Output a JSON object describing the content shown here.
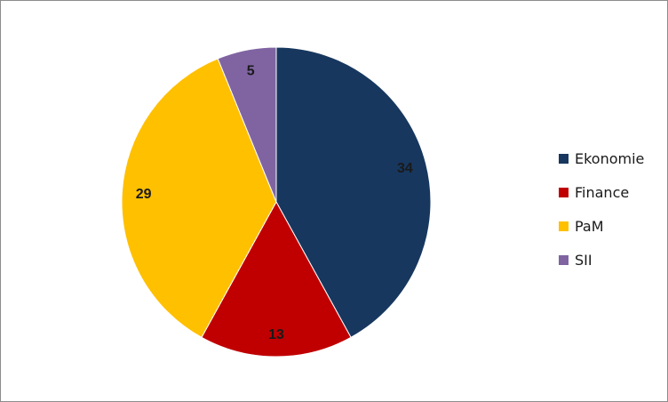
{
  "chart_data": {
    "type": "pie",
    "categories": [
      "Ekonomie",
      "Finance",
      "PaM",
      "SII"
    ],
    "values": [
      34,
      13,
      29,
      5
    ],
    "colors": [
      "#17375E",
      "#C00000",
      "#FFC000",
      "#8064A2"
    ],
    "data_labels": [
      "34",
      "13",
      "29",
      "5"
    ],
    "legend_position": "right",
    "start_angle": "12 o'clock",
    "direction": "clockwise"
  },
  "legend": {
    "items": [
      {
        "label": "Ekonomie",
        "color": "#17375E"
      },
      {
        "label": "Finance",
        "color": "#C00000"
      },
      {
        "label": "PaM",
        "color": "#FFC000"
      },
      {
        "label": "SII",
        "color": "#8064A2"
      }
    ]
  }
}
